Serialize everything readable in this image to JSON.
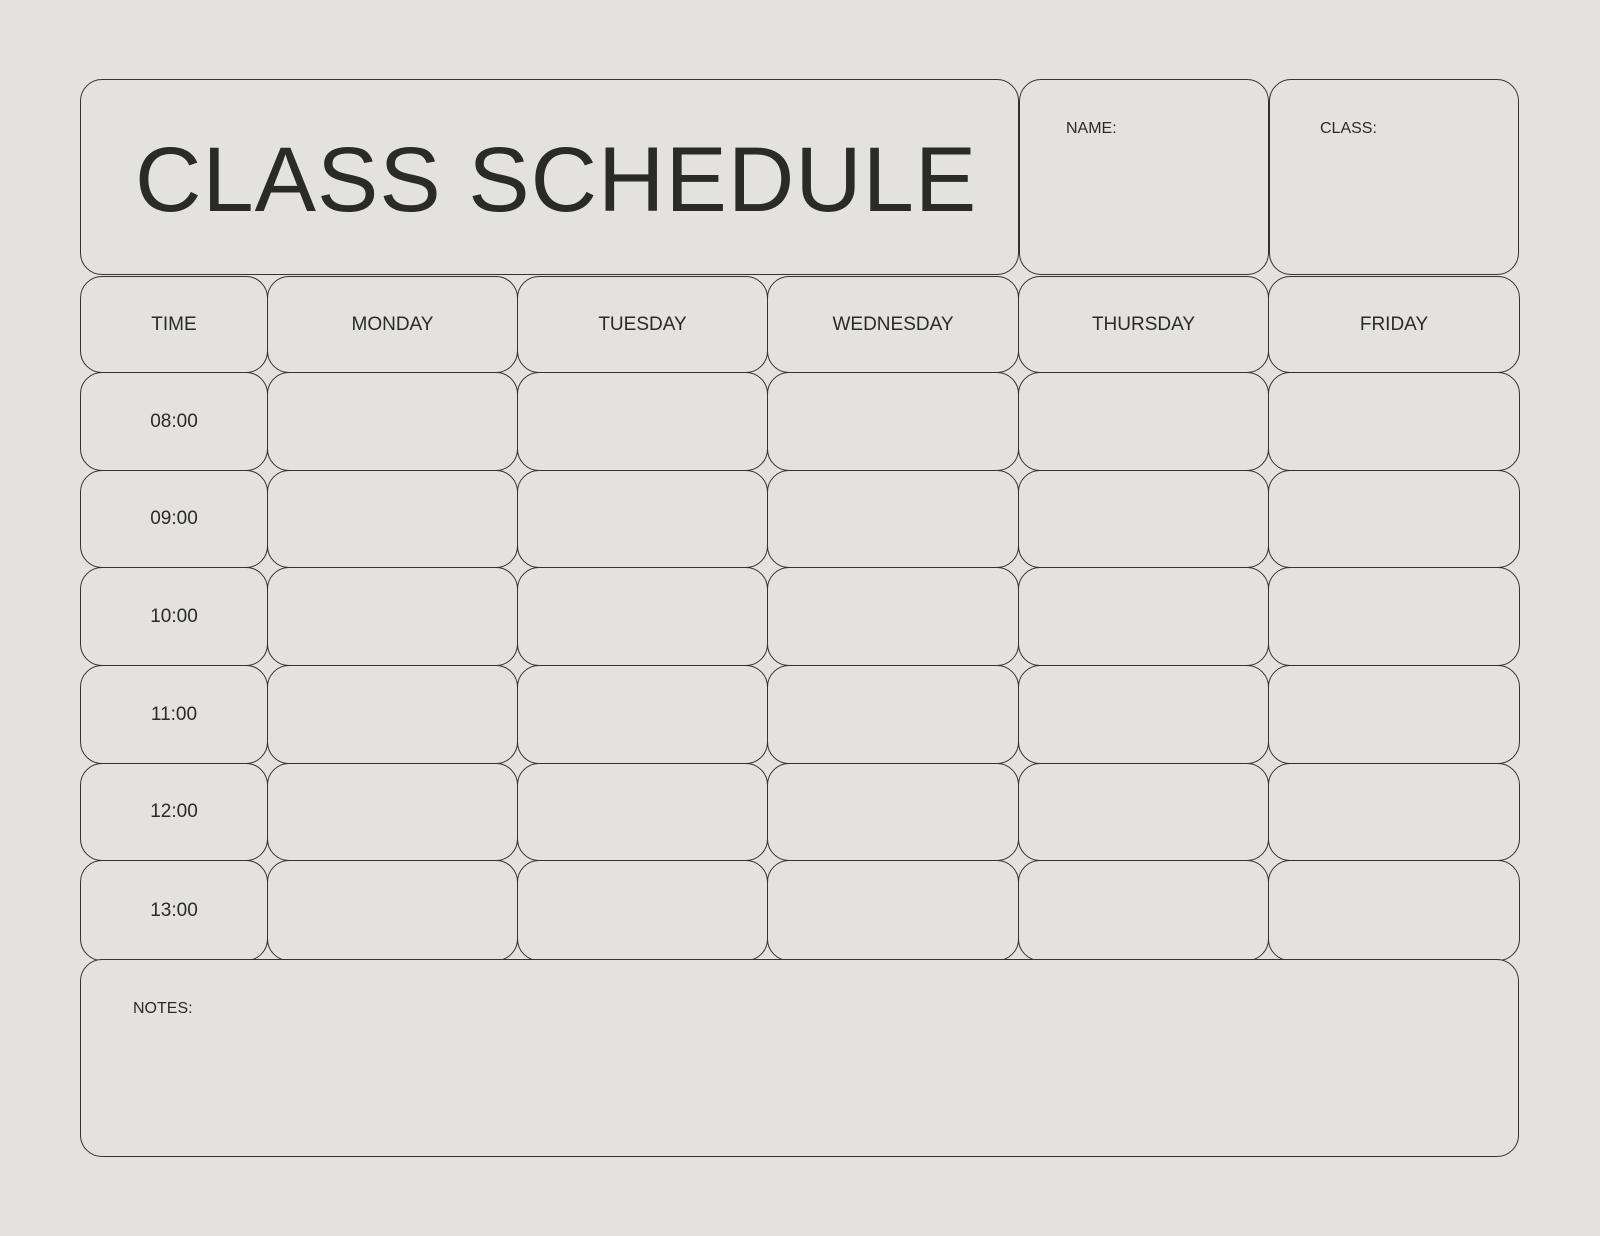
{
  "title": "CLASS SCHEDULE",
  "name_label": "NAME:",
  "class_label": "CLASS:",
  "headers": [
    "TIME",
    "MONDAY",
    "TUESDAY",
    "WEDNESDAY",
    "THURSDAY",
    "FRIDAY"
  ],
  "times": [
    "08:00",
    "09:00",
    "10:00",
    "11:00",
    "12:00",
    "13:00"
  ],
  "notes_label": "NOTES:",
  "colors": {
    "background": "#e3e2de",
    "border": "#333330",
    "text": "#2a2a28"
  }
}
